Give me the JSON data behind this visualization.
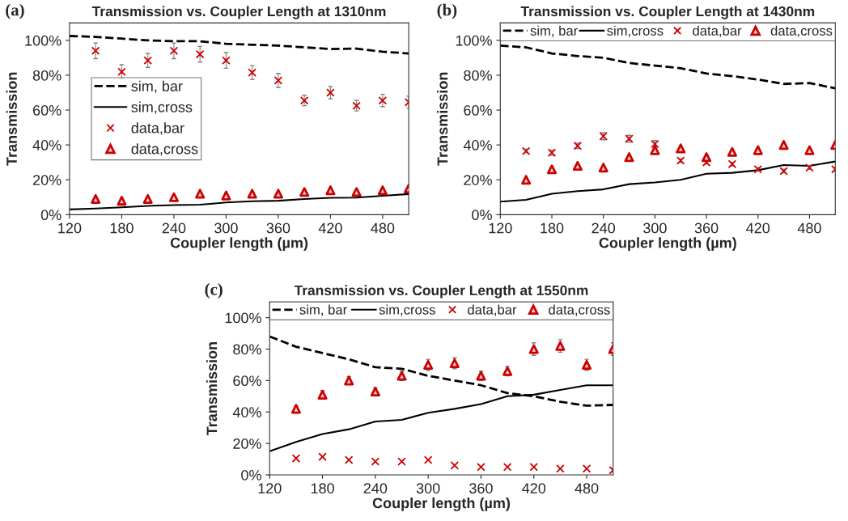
{
  "chart_data": [
    {
      "type": "line",
      "title": "Transmission vs. Coupler Length at 1310nm",
      "xlabel": "Coupler length (µm)",
      "ylabel": "Transmission",
      "annotations": [
        "(a)"
      ],
      "xlim": [
        120,
        510
      ],
      "xticks": [
        120,
        180,
        240,
        300,
        360,
        420,
        480
      ],
      "ylim": [
        0,
        110
      ],
      "yticks": [
        {
          "value": 0,
          "label": "0%"
        },
        {
          "value": 20,
          "label": "20%"
        },
        {
          "value": 40,
          "label": "40%"
        },
        {
          "value": 60,
          "label": "60%"
        },
        {
          "value": 80,
          "label": "80%"
        },
        {
          "value": 100,
          "label": "100%"
        }
      ],
      "legend": "center left",
      "grid": false,
      "series": [
        {
          "name": "sim, bar",
          "type": "line",
          "line_style": "dashed",
          "marker": "none",
          "color": "#000000",
          "x": [
            120,
            150,
            180,
            210,
            240,
            270,
            300,
            330,
            360,
            390,
            420,
            450,
            480,
            510
          ],
          "values": [
            102.5,
            102,
            101,
            100,
            99.5,
            99.5,
            98,
            97.5,
            97,
            96,
            95,
            95.3,
            93.5,
            92.5
          ]
        },
        {
          "name": "sim,cross",
          "type": "line",
          "line_style": "solid",
          "marker": "none",
          "color": "#000000",
          "x": [
            120,
            150,
            180,
            210,
            240,
            270,
            300,
            330,
            360,
            390,
            420,
            450,
            480,
            510
          ],
          "values": [
            3,
            3.5,
            4.2,
            5,
            5.5,
            5.7,
            7,
            7.7,
            8,
            9,
            9.7,
            9.8,
            10.8,
            11.8
          ]
        },
        {
          "name": "data,bar",
          "type": "scatter",
          "marker": "cross",
          "color": "#cc0000",
          "x": [
            150,
            180,
            210,
            240,
            270,
            300,
            330,
            360,
            390,
            420,
            450,
            480,
            510
          ],
          "values": [
            94,
            82,
            88.5,
            94,
            92,
            88.5,
            81.5,
            77,
            65.5,
            70,
            62.5,
            65.5,
            64.5
          ],
          "errors": [
            4.5,
            4,
            4,
            4.5,
            4.5,
            4.5,
            4,
            4,
            3,
            3.5,
            3,
            3.5,
            3.5
          ]
        },
        {
          "name": "data,cross",
          "type": "scatter",
          "marker": "triangle",
          "color": "#cc0000",
          "x": [
            150,
            180,
            210,
            240,
            270,
            300,
            330,
            360,
            390,
            420,
            450,
            480,
            510
          ],
          "values": [
            9,
            8,
            9,
            10,
            12,
            11,
            12,
            12,
            13,
            14,
            13,
            14,
            15
          ]
        }
      ]
    },
    {
      "type": "line",
      "title": "Transmission vs. Coupler Length at 1430nm",
      "xlabel": "Coupler length (µm)",
      "ylabel": "Transmission",
      "annotations": [
        "(b)"
      ],
      "xlim": [
        120,
        510
      ],
      "xticks": [
        120,
        180,
        240,
        300,
        360,
        420,
        480
      ],
      "ylim": [
        0,
        110
      ],
      "yticks": [
        {
          "value": 0,
          "label": "0%"
        },
        {
          "value": 20,
          "label": "20%"
        },
        {
          "value": 40,
          "label": "40%"
        },
        {
          "value": 60,
          "label": "60%"
        },
        {
          "value": 80,
          "label": "80%"
        },
        {
          "value": 100,
          "label": "100%"
        }
      ],
      "legend": "top",
      "grid": false,
      "series": [
        {
          "name": "sim, bar",
          "type": "line",
          "line_style": "dashed",
          "marker": "none",
          "color": "#000000",
          "x": [
            120,
            150,
            180,
            210,
            240,
            270,
            300,
            330,
            360,
            390,
            420,
            450,
            480,
            510
          ],
          "values": [
            97,
            96,
            92.5,
            91,
            90,
            87,
            85.5,
            84,
            81,
            79.5,
            77.5,
            75,
            75.5,
            72.5
          ]
        },
        {
          "name": "sim,cross",
          "type": "line",
          "line_style": "solid",
          "marker": "none",
          "color": "#000000",
          "x": [
            120,
            150,
            180,
            210,
            240,
            270,
            300,
            330,
            360,
            390,
            420,
            450,
            480,
            510
          ],
          "values": [
            7.5,
            8.5,
            12,
            13.5,
            14.5,
            17.5,
            18.5,
            20,
            23.5,
            24,
            25.5,
            28.5,
            28,
            30.5
          ]
        },
        {
          "name": "data,bar",
          "type": "scatter",
          "marker": "cross",
          "color": "#cc0000",
          "x": [
            150,
            180,
            210,
            240,
            270,
            300,
            330,
            360,
            390,
            420,
            450,
            480,
            510
          ],
          "values": [
            36.5,
            35.5,
            39.5,
            45,
            43.5,
            40.5,
            31,
            30,
            29,
            26,
            25,
            27,
            26
          ],
          "errors": [
            1,
            1.5,
            1.5,
            2,
            2,
            2,
            1,
            1,
            1,
            1,
            1,
            1,
            1
          ]
        },
        {
          "name": "data,cross",
          "type": "scatter",
          "marker": "triangle",
          "color": "#cc0000",
          "x": [
            150,
            180,
            210,
            240,
            270,
            300,
            330,
            360,
            390,
            420,
            450,
            480,
            510
          ],
          "values": [
            20,
            26,
            28,
            27,
            33,
            37,
            38,
            33,
            36,
            37,
            40,
            37,
            40
          ]
        }
      ]
    },
    {
      "type": "line",
      "title": "Transmission vs. Coupler Length at 1550nm",
      "xlabel": "Coupler length (µm)",
      "ylabel": "Transmission",
      "annotations": [
        "(c)"
      ],
      "xlim": [
        120,
        510
      ],
      "xticks": [
        120,
        180,
        240,
        300,
        360,
        420,
        480
      ],
      "ylim": [
        0,
        110
      ],
      "yticks": [
        {
          "value": 0,
          "label": "0%"
        },
        {
          "value": 20,
          "label": "20%"
        },
        {
          "value": 40,
          "label": "40%"
        },
        {
          "value": 60,
          "label": "60%"
        },
        {
          "value": 80,
          "label": "80%"
        },
        {
          "value": 100,
          "label": "100%"
        }
      ],
      "legend": "top",
      "grid": false,
      "series": [
        {
          "name": "sim, bar",
          "type": "line",
          "line_style": "dashed",
          "marker": "none",
          "color": "#000000",
          "x": [
            120,
            150,
            180,
            210,
            240,
            270,
            300,
            330,
            360,
            390,
            420,
            450,
            480,
            510
          ],
          "values": [
            88,
            81.5,
            77.5,
            73.5,
            68.5,
            67.5,
            63,
            60,
            57,
            52,
            50,
            46.5,
            44,
            44.5
          ]
        },
        {
          "name": "sim,cross",
          "type": "line",
          "line_style": "solid",
          "marker": "none",
          "color": "#000000",
          "x": [
            120,
            150,
            180,
            210,
            240,
            270,
            300,
            330,
            360,
            390,
            420,
            450,
            480,
            510
          ],
          "values": [
            15,
            21,
            26,
            29,
            34,
            35,
            39.5,
            42,
            45,
            50,
            51,
            54,
            57,
            57
          ]
        },
        {
          "name": "data,bar",
          "type": "scatter",
          "marker": "cross",
          "color": "#cc0000",
          "x": [
            150,
            180,
            210,
            240,
            270,
            300,
            330,
            360,
            390,
            420,
            450,
            480,
            510
          ],
          "values": [
            10.5,
            11.5,
            9.5,
            8.5,
            8.5,
            9.5,
            6,
            5,
            5,
            5,
            4,
            4,
            3
          ]
        },
        {
          "name": "data,cross",
          "type": "scatter",
          "marker": "triangle",
          "color": "#cc0000",
          "x": [
            150,
            180,
            210,
            240,
            270,
            300,
            330,
            360,
            390,
            420,
            450,
            480,
            510
          ],
          "values": [
            42,
            51,
            60,
            53,
            63,
            70,
            71,
            63,
            66,
            80,
            82,
            70,
            80
          ],
          "errors": [
            2,
            2.5,
            2.5,
            2.5,
            3,
            3.5,
            3.5,
            3,
            3,
            4,
            4,
            3.5,
            4
          ]
        }
      ]
    }
  ]
}
